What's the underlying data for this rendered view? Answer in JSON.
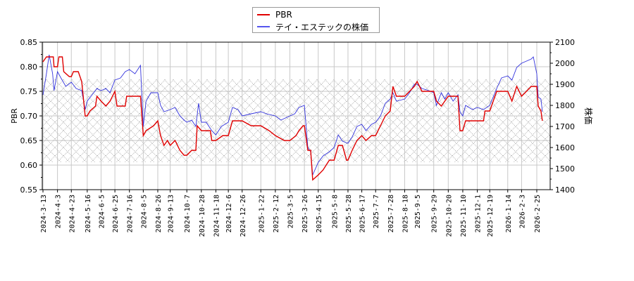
{
  "chart_data": {
    "type": "line",
    "title": "",
    "xlabel": "",
    "ylabel": "PBR",
    "ylabel_right": "株価",
    "ylim": [
      0.55,
      0.85
    ],
    "ylim_right": [
      1400,
      2100
    ],
    "yticks": [
      "0.55",
      "0.60",
      "0.65",
      "0.70",
      "0.75",
      "0.80",
      "0.85"
    ],
    "yticks_right": [
      "1400",
      "1500",
      "1600",
      "1700",
      "1800",
      "1900",
      "2000",
      "2100"
    ],
    "xticks": [
      "2024-3-13",
      "2024-4-3",
      "2024-4-23",
      "2024-5-16",
      "2024-6-5",
      "2024-6-25",
      "2024-7-16",
      "2024-8-5",
      "2024-8-26",
      "2024-9-13",
      "2024-10-7",
      "2024-10-28",
      "2024-11-18",
      "2024-12-6",
      "2024-12-26",
      "2025-1-22",
      "2025-2-12",
      "2025-3-5",
      "2025-3-26",
      "2025-4-15",
      "2025-5-8",
      "2025-5-28",
      "2025-6-17",
      "2025-7-7",
      "2025-7-28",
      "2025-8-18",
      "2025-9-5",
      "2025-9-29",
      "2025-10-20",
      "2025-11-10",
      "2025-12-1",
      "2025-12-19",
      "2026-1-14",
      "2026-2-3",
      "2026-2-25"
    ],
    "grid": true,
    "legend_position": "top-center",
    "shaded_band": {
      "pbr_from": 0.606,
      "pbr_to": 0.774,
      "style": "crosshatch"
    },
    "series": [
      {
        "name": "PBR",
        "color": "#e00000",
        "axis": "left",
        "points": [
          [
            "2024-3-13",
            0.81
          ],
          [
            "2024-3-18",
            0.82
          ],
          [
            "2024-3-28",
            0.82
          ],
          [
            "2024-3-29",
            0.8
          ],
          [
            "2024-4-3",
            0.8
          ],
          [
            "2024-4-5",
            0.82
          ],
          [
            "2024-4-10",
            0.82
          ],
          [
            "2024-4-12",
            0.79
          ],
          [
            "2024-4-20",
            0.78
          ],
          [
            "2024-4-23",
            0.78
          ],
          [
            "2024-4-26",
            0.79
          ],
          [
            "2024-5-3",
            0.79
          ],
          [
            "2024-5-8",
            0.77
          ],
          [
            "2024-5-13",
            0.7
          ],
          [
            "2024-5-16",
            0.7
          ],
          [
            "2024-5-20",
            0.71
          ],
          [
            "2024-5-28",
            0.72
          ],
          [
            "2024-5-30",
            0.74
          ],
          [
            "2024-6-5",
            0.73
          ],
          [
            "2024-6-12",
            0.72
          ],
          [
            "2024-6-18",
            0.73
          ],
          [
            "2024-6-25",
            0.75
          ],
          [
            "2024-6-28",
            0.72
          ],
          [
            "2024-7-10",
            0.72
          ],
          [
            "2024-7-12",
            0.74
          ],
          [
            "2024-7-16",
            0.74
          ],
          [
            "2024-8-1",
            0.74
          ],
          [
            "2024-8-4",
            0.68
          ],
          [
            "2024-8-5",
            0.66
          ],
          [
            "2024-8-9",
            0.67
          ],
          [
            "2024-8-20",
            0.68
          ],
          [
            "2024-8-26",
            0.69
          ],
          [
            "2024-8-30",
            0.66
          ],
          [
            "2024-9-4",
            0.64
          ],
          [
            "2024-9-9",
            0.65
          ],
          [
            "2024-9-13",
            0.64
          ],
          [
            "2024-9-20",
            0.65
          ],
          [
            "2024-9-27",
            0.63
          ],
          [
            "2024-10-3",
            0.62
          ],
          [
            "2024-10-7",
            0.62
          ],
          [
            "2024-10-14",
            0.63
          ],
          [
            "2024-10-20",
            0.63
          ],
          [
            "2024-10-22",
            0.68
          ],
          [
            "2024-10-28",
            0.67
          ],
          [
            "2024-11-10",
            0.67
          ],
          [
            "2024-11-12",
            0.65
          ],
          [
            "2024-11-18",
            0.65
          ],
          [
            "2024-11-28",
            0.66
          ],
          [
            "2024-12-6",
            0.66
          ],
          [
            "2024-12-12",
            0.69
          ],
          [
            "2024-12-26",
            0.69
          ],
          [
            "2025-1-8",
            0.68
          ],
          [
            "2025-1-22",
            0.68
          ],
          [
            "2025-2-3",
            0.67
          ],
          [
            "2025-2-12",
            0.66
          ],
          [
            "2025-2-25",
            0.65
          ],
          [
            "2025-3-5",
            0.65
          ],
          [
            "2025-3-14",
            0.66
          ],
          [
            "2025-3-18",
            0.67
          ],
          [
            "2025-3-24",
            0.68
          ],
          [
            "2025-3-26",
            0.68
          ],
          [
            "2025-3-31",
            0.63
          ],
          [
            "2025-4-4",
            0.63
          ],
          [
            "2025-4-7",
            0.57
          ],
          [
            "2025-4-15",
            0.58
          ],
          [
            "2025-4-22",
            0.59
          ],
          [
            "2025-5-1",
            0.61
          ],
          [
            "2025-5-8",
            0.61
          ],
          [
            "2025-5-14",
            0.64
          ],
          [
            "2025-5-20",
            0.64
          ],
          [
            "2025-5-26",
            0.61
          ],
          [
            "2025-5-28",
            0.61
          ],
          [
            "2025-6-3",
            0.63
          ],
          [
            "2025-6-10",
            0.65
          ],
          [
            "2025-6-17",
            0.66
          ],
          [
            "2025-6-23",
            0.65
          ],
          [
            "2025-7-1",
            0.66
          ],
          [
            "2025-7-7",
            0.66
          ],
          [
            "2025-7-14",
            0.68
          ],
          [
            "2025-7-21",
            0.7
          ],
          [
            "2025-7-28",
            0.71
          ],
          [
            "2025-8-1",
            0.76
          ],
          [
            "2025-8-6",
            0.74
          ],
          [
            "2025-8-18",
            0.74
          ],
          [
            "2025-8-25",
            0.75
          ],
          [
            "2025-9-1",
            0.76
          ],
          [
            "2025-9-5",
            0.77
          ],
          [
            "2025-9-12",
            0.75
          ],
          [
            "2025-9-22",
            0.75
          ],
          [
            "2025-9-29",
            0.75
          ],
          [
            "2025-10-3",
            0.73
          ],
          [
            "2025-10-10",
            0.72
          ],
          [
            "2025-10-15",
            0.73
          ],
          [
            "2025-10-20",
            0.74
          ],
          [
            "2025-11-3",
            0.74
          ],
          [
            "2025-11-6",
            0.67
          ],
          [
            "2025-11-10",
            0.67
          ],
          [
            "2025-11-14",
            0.69
          ],
          [
            "2025-12-1",
            0.69
          ],
          [
            "2025-12-10",
            0.69
          ],
          [
            "2025-12-12",
            0.71
          ],
          [
            "2025-12-19",
            0.71
          ],
          [
            "2025-12-29",
            0.75
          ],
          [
            "2026-1-14",
            0.75
          ],
          [
            "2026-1-20",
            0.73
          ],
          [
            "2026-1-27",
            0.76
          ],
          [
            "2026-2-3",
            0.74
          ],
          [
            "2026-2-10",
            0.75
          ],
          [
            "2026-2-17",
            0.76
          ],
          [
            "2026-2-25",
            0.76
          ],
          [
            "2026-2-27",
            0.72
          ],
          [
            "2026-3-3",
            0.71
          ],
          [
            "2026-3-5",
            0.69
          ]
        ]
      },
      {
        "name": "テイ・エステック の株価",
        "color": "#3333dd",
        "axis": "right",
        "points": [
          [
            "2024-3-13",
            1850
          ],
          [
            "2024-3-18",
            1950
          ],
          [
            "2024-3-22",
            2040
          ],
          [
            "2024-3-27",
            1950
          ],
          [
            "2024-3-29",
            1870
          ],
          [
            "2024-4-3",
            1960
          ],
          [
            "2024-4-8",
            1930
          ],
          [
            "2024-4-15",
            1890
          ],
          [
            "2024-4-23",
            1910
          ],
          [
            "2024-4-30",
            1880
          ],
          [
            "2024-5-8",
            1870
          ],
          [
            "2024-5-13",
            1780
          ],
          [
            "2024-5-16",
            1820
          ],
          [
            "2024-5-23",
            1850
          ],
          [
            "2024-5-30",
            1880
          ],
          [
            "2024-6-5",
            1870
          ],
          [
            "2024-6-12",
            1880
          ],
          [
            "2024-6-18",
            1860
          ],
          [
            "2024-6-25",
            1920
          ],
          [
            "2024-7-3",
            1930
          ],
          [
            "2024-7-10",
            1960
          ],
          [
            "2024-7-16",
            1970
          ],
          [
            "2024-7-24",
            1950
          ],
          [
            "2024-8-1",
            1990
          ],
          [
            "2024-8-5",
            1700
          ],
          [
            "2024-8-9",
            1820
          ],
          [
            "2024-8-16",
            1860
          ],
          [
            "2024-8-26",
            1860
          ],
          [
            "2024-8-30",
            1800
          ],
          [
            "2024-9-4",
            1770
          ],
          [
            "2024-9-13",
            1780
          ],
          [
            "2024-9-20",
            1790
          ],
          [
            "2024-9-27",
            1750
          ],
          [
            "2024-10-3",
            1730
          ],
          [
            "2024-10-7",
            1720
          ],
          [
            "2024-10-14",
            1730
          ],
          [
            "2024-10-20",
            1700
          ],
          [
            "2024-10-24",
            1810
          ],
          [
            "2024-10-28",
            1720
          ],
          [
            "2024-11-4",
            1720
          ],
          [
            "2024-11-12",
            1680
          ],
          [
            "2024-11-18",
            1660
          ],
          [
            "2024-11-26",
            1700
          ],
          [
            "2024-12-6",
            1720
          ],
          [
            "2024-12-12",
            1790
          ],
          [
            "2024-12-20",
            1780
          ],
          [
            "2024-12-26",
            1750
          ],
          [
            "2025-1-8",
            1760
          ],
          [
            "2025-1-22",
            1770
          ],
          [
            "2025-1-30",
            1760
          ],
          [
            "2025-2-12",
            1750
          ],
          [
            "2025-2-20",
            1730
          ],
          [
            "2025-3-5",
            1750
          ],
          [
            "2025-3-12",
            1760
          ],
          [
            "2025-3-18",
            1790
          ],
          [
            "2025-3-26",
            1800
          ],
          [
            "2025-3-31",
            1600
          ],
          [
            "2025-4-4",
            1580
          ],
          [
            "2025-4-7",
            1470
          ],
          [
            "2025-4-15",
            1530
          ],
          [
            "2025-4-22",
            1560
          ],
          [
            "2025-5-1",
            1580
          ],
          [
            "2025-5-8",
            1600
          ],
          [
            "2025-5-14",
            1660
          ],
          [
            "2025-5-20",
            1630
          ],
          [
            "2025-5-28",
            1620
          ],
          [
            "2025-6-3",
            1650
          ],
          [
            "2025-6-10",
            1700
          ],
          [
            "2025-6-17",
            1710
          ],
          [
            "2025-6-23",
            1680
          ],
          [
            "2025-7-1",
            1710
          ],
          [
            "2025-7-7",
            1720
          ],
          [
            "2025-7-14",
            1750
          ],
          [
            "2025-7-21",
            1810
          ],
          [
            "2025-7-28",
            1830
          ],
          [
            "2025-8-1",
            1860
          ],
          [
            "2025-8-6",
            1820
          ],
          [
            "2025-8-18",
            1830
          ],
          [
            "2025-8-25",
            1860
          ],
          [
            "2025-9-1",
            1900
          ],
          [
            "2025-9-5",
            1900
          ],
          [
            "2025-9-12",
            1880
          ],
          [
            "2025-9-22",
            1870
          ],
          [
            "2025-9-29",
            1860
          ],
          [
            "2025-10-3",
            1800
          ],
          [
            "2025-10-10",
            1860
          ],
          [
            "2025-10-15",
            1830
          ],
          [
            "2025-10-20",
            1860
          ],
          [
            "2025-10-27",
            1820
          ],
          [
            "2025-11-3",
            1850
          ],
          [
            "2025-11-6",
            1770
          ],
          [
            "2025-11-10",
            1750
          ],
          [
            "2025-11-14",
            1800
          ],
          [
            "2025-11-24",
            1780
          ],
          [
            "2025-12-1",
            1790
          ],
          [
            "2025-12-10",
            1780
          ],
          [
            "2025-12-19",
            1800
          ],
          [
            "2025-12-29",
            1880
          ],
          [
            "2026-1-5",
            1930
          ],
          [
            "2026-1-14",
            1940
          ],
          [
            "2026-1-20",
            1920
          ],
          [
            "2026-1-27",
            1980
          ],
          [
            "2026-2-3",
            2000
          ],
          [
            "2026-2-10",
            2010
          ],
          [
            "2026-2-17",
            2020
          ],
          [
            "2026-2-20",
            2030
          ],
          [
            "2026-2-25",
            1950
          ],
          [
            "2026-2-27",
            1840
          ],
          [
            "2026-3-3",
            1830
          ],
          [
            "2026-3-5",
            1770
          ]
        ]
      }
    ]
  },
  "legend": {
    "items": [
      {
        "label": "PBR",
        "color": "#e00000"
      },
      {
        "label": "テイ・エステックの株価",
        "color": "#5555ee"
      }
    ]
  }
}
